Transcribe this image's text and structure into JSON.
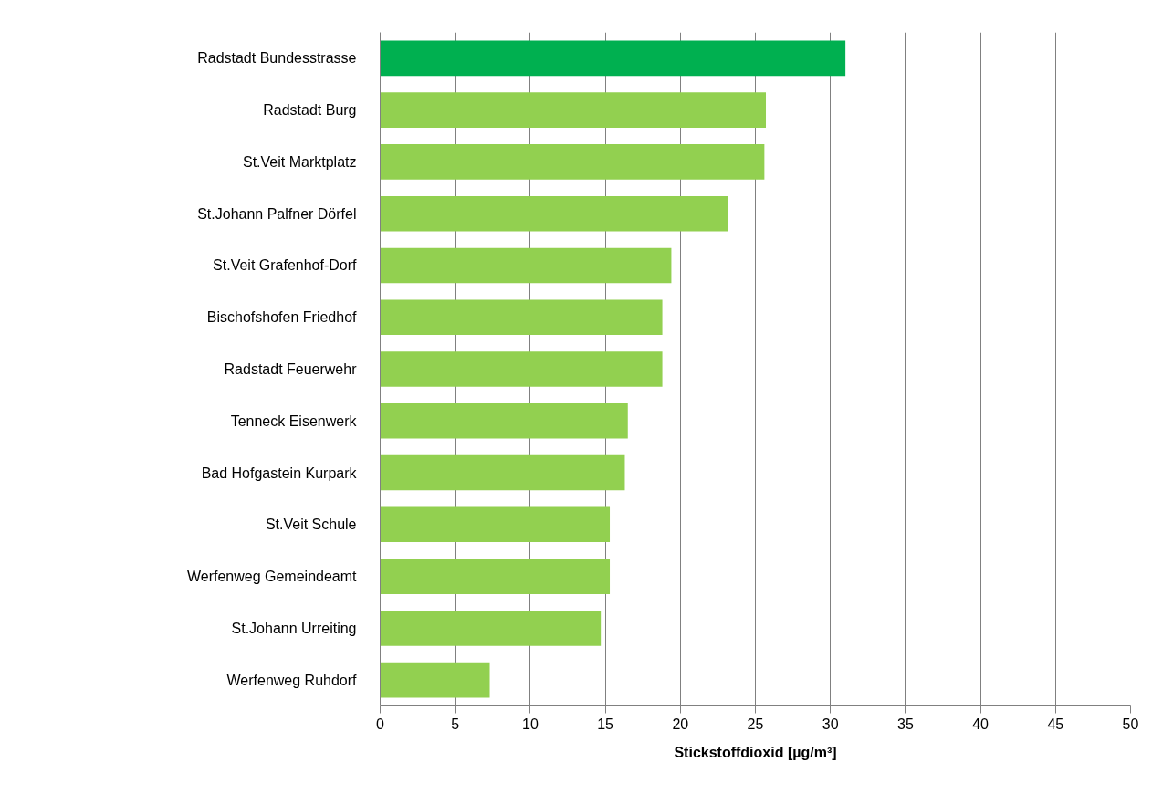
{
  "chart_data": {
    "type": "bar",
    "orientation": "horizontal",
    "categories": [
      "Radstadt Bundesstrasse",
      "Radstadt Burg",
      "St.Veit Marktplatz",
      "St.Johann Palfner Dörfel",
      "St.Veit Grafenhof-Dorf",
      "Bischofshofen Friedhof",
      "Radstadt Feuerwehr",
      "Tenneck Eisenwerk",
      "Bad Hofgastein Kurpark",
      "St.Veit Schule",
      "Werfenweg Gemeindeamt",
      "St.Johann Urreiting",
      "Werfenweg Ruhdorf"
    ],
    "values": [
      31.0,
      25.7,
      25.6,
      23.2,
      19.4,
      18.8,
      18.8,
      16.5,
      16.3,
      15.3,
      15.3,
      14.7,
      7.3
    ],
    "colors": [
      "#00b050",
      "#92d050",
      "#92d050",
      "#92d050",
      "#92d050",
      "#92d050",
      "#92d050",
      "#92d050",
      "#92d050",
      "#92d050",
      "#92d050",
      "#92d050",
      "#92d050"
    ],
    "xlabel": "Stickstoffdioxid [µg/m³]",
    "xlim": [
      0,
      50
    ],
    "xticks": [
      0,
      5,
      10,
      15,
      20,
      25,
      30,
      35,
      40,
      45,
      50
    ],
    "grid": "x"
  }
}
